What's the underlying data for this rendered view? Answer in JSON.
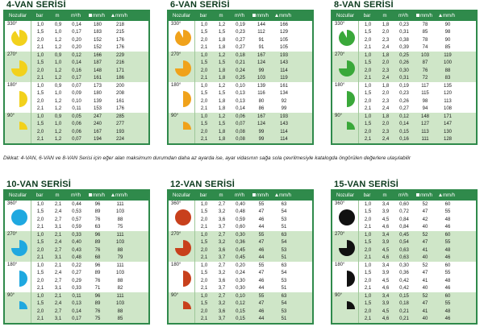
{
  "headers": {
    "nozzle": "Nozullar",
    "bar": "bar",
    "m": "m",
    "m3h": "m³/h",
    "mmh_sq": "mm/h",
    "mmh_tri": "mm/h"
  },
  "note": "Dikkat: 4-VAN, 6-VAN ve 8-VAN Serisi için eğer alan maksimum durumdan daha az ayarda ise, ayar vidasının sağa sola çevrilmesiyle katalogda öngörülen değerlere ulaşılabilir",
  "panels": [
    {
      "title": "4-VAN SERİSİ",
      "color": "#f2d11c",
      "groups": [
        {
          "deg": "330°",
          "rows": [
            [
              "1,0",
              "0,9",
              "0,14",
              "180",
              "218"
            ],
            [
              "1,5",
              "1,0",
              "0,17",
              "183",
              "215"
            ],
            [
              "2,0",
              "1,2",
              "0,20",
              "152",
              "176"
            ],
            [
              "2,1",
              "1,2",
              "0,20",
              "152",
              "176"
            ]
          ]
        },
        {
          "deg": "270°",
          "rows": [
            [
              "1,0",
              "0,9",
              "0,12",
              "166",
              "229"
            ],
            [
              "1,5",
              "1,0",
              "0,14",
              "187",
              "216"
            ],
            [
              "2,0",
              "1,2",
              "0,16",
              "148",
              "171"
            ],
            [
              "2,1",
              "1,2",
              "0,17",
              "161",
              "186"
            ]
          ]
        },
        {
          "deg": "180°",
          "rows": [
            [
              "1,0",
              "0,9",
              "0,07",
              "173",
              "200"
            ],
            [
              "1,5",
              "1,0",
              "0,09",
              "180",
              "208"
            ],
            [
              "2,0",
              "1,2",
              "0,10",
              "139",
              "161"
            ],
            [
              "2,1",
              "1,2",
              "0,11",
              "153",
              "176"
            ]
          ]
        },
        {
          "deg": "90°",
          "rows": [
            [
              "1,0",
              "0,9",
              "0,05",
              "247",
              "285"
            ],
            [
              "1,5",
              "1,0",
              "0,06",
              "240",
              "277"
            ],
            [
              "2,0",
              "1,2",
              "0,06",
              "167",
              "193"
            ],
            [
              "2,1",
              "1,2",
              "0,07",
              "194",
              "224"
            ]
          ]
        }
      ]
    },
    {
      "title": "6-VAN SERİSİ",
      "color": "#f0a21b",
      "groups": [
        {
          "deg": "330°",
          "rows": [
            [
              "1,0",
              "1,2",
              "0,19",
              "144",
              "166"
            ],
            [
              "1,5",
              "1,5",
              "0,23",
              "112",
              "129"
            ],
            [
              "2,0",
              "1,8",
              "0,27",
              "91",
              "105"
            ],
            [
              "2,1",
              "1,8",
              "0,27",
              "91",
              "105"
            ]
          ]
        },
        {
          "deg": "270°",
          "rows": [
            [
              "1,0",
              "1,2",
              "0,18",
              "167",
              "193"
            ],
            [
              "1,5",
              "1,5",
              "0,21",
              "124",
              "143"
            ],
            [
              "2,0",
              "1,8",
              "0,24",
              "99",
              "114"
            ],
            [
              "2,1",
              "1,8",
              "0,25",
              "103",
              "119"
            ]
          ]
        },
        {
          "deg": "180°",
          "rows": [
            [
              "1,0",
              "1,2",
              "0,10",
              "139",
              "161"
            ],
            [
              "1,5",
              "1,5",
              "0,13",
              "116",
              "134"
            ],
            [
              "2,0",
              "1,8",
              "0,13",
              "80",
              "92"
            ],
            [
              "2,1",
              "1,8",
              "0,14",
              "86",
              "99"
            ]
          ]
        },
        {
          "deg": "90°",
          "rows": [
            [
              "1,0",
              "1,2",
              "0,06",
              "167",
              "193"
            ],
            [
              "1,5",
              "1,5",
              "0,07",
              "124",
              "143"
            ],
            [
              "2,0",
              "1,8",
              "0,08",
              "99",
              "114"
            ],
            [
              "2,1",
              "1,8",
              "0,08",
              "99",
              "114"
            ]
          ]
        }
      ]
    },
    {
      "title": "8-VAN SERİSİ",
      "color": "#3aa83a",
      "groups": [
        {
          "deg": "330°",
          "rows": [
            [
              "1,0",
              "1,8",
              "0,23",
              "78",
              "90"
            ],
            [
              "1,5",
              "2,0",
              "0,31",
              "85",
              "98"
            ],
            [
              "2,0",
              "2,3",
              "0,38",
              "78",
              "90"
            ],
            [
              "2,1",
              "2,4",
              "0,39",
              "74",
              "85"
            ]
          ]
        },
        {
          "deg": "270°",
          "rows": [
            [
              "1,0",
              "1,8",
              "0,25",
              "103",
              "119"
            ],
            [
              "1,5",
              "2,0",
              "0,26",
              "87",
              "100"
            ],
            [
              "2,0",
              "2,3",
              "0,30",
              "76",
              "88"
            ],
            [
              "2,1",
              "2,4",
              "0,31",
              "72",
              "83"
            ]
          ]
        },
        {
          "deg": "180°",
          "rows": [
            [
              "1,0",
              "1,8",
              "0,19",
              "117",
              "135"
            ],
            [
              "1,5",
              "2,0",
              "0,23",
              "115",
              "120"
            ],
            [
              "2,0",
              "2,3",
              "0,26",
              "98",
              "113"
            ],
            [
              "2,1",
              "2,4",
              "0,27",
              "94",
              "108"
            ]
          ]
        },
        {
          "deg": "90°",
          "rows": [
            [
              "1,0",
              "1,8",
              "0,12",
              "148",
              "171"
            ],
            [
              "1,5",
              "2,0",
              "0,14",
              "127",
              "147"
            ],
            [
              "2,0",
              "2,3",
              "0,15",
              "113",
              "130"
            ],
            [
              "2,1",
              "2,4",
              "0,16",
              "111",
              "128"
            ]
          ]
        }
      ]
    },
    {
      "title": "10-VAN SERİSİ",
      "color": "#1fa8e0",
      "groups": [
        {
          "deg": "360°",
          "rows": [
            [
              "1,0",
              "2,1",
              "0,44",
              "96",
              "111"
            ],
            [
              "1,5",
              "2,4",
              "0,53",
              "89",
              "103"
            ],
            [
              "2,0",
              "2,7",
              "0,57",
              "76",
              "88"
            ],
            [
              "2,1",
              "3,1",
              "0,59",
              "63",
              "75"
            ]
          ]
        },
        {
          "deg": "270°",
          "rows": [
            [
              "1,0",
              "2,1",
              "0,33",
              "96",
              "111"
            ],
            [
              "1,5",
              "2,4",
              "0,40",
              "89",
              "103"
            ],
            [
              "2,0",
              "2,7",
              "0,43",
              "76",
              "88"
            ],
            [
              "2,1",
              "3,1",
              "0,48",
              "68",
              "79"
            ]
          ]
        },
        {
          "deg": "180°",
          "rows": [
            [
              "1,0",
              "2,1",
              "0,22",
              "96",
              "111"
            ],
            [
              "1,5",
              "2,4",
              "0,27",
              "89",
              "103"
            ],
            [
              "2,0",
              "2,7",
              "0,29",
              "76",
              "88"
            ],
            [
              "2,1",
              "3,1",
              "0,33",
              "71",
              "82"
            ]
          ]
        },
        {
          "deg": "90°",
          "rows": [
            [
              "1,0",
              "2,1",
              "0,11",
              "96",
              "111"
            ],
            [
              "1,5",
              "2,4",
              "0,13",
              "89",
              "103"
            ],
            [
              "2,0",
              "2,7",
              "0,14",
              "76",
              "88"
            ],
            [
              "2,1",
              "3,1",
              "0,17",
              "75",
              "85"
            ]
          ]
        }
      ]
    },
    {
      "title": "12-VAN SERİSİ",
      "color": "#c8401c",
      "groups": [
        {
          "deg": "360°",
          "rows": [
            [
              "1,0",
              "2,7",
              "0,40",
              "55",
              "63"
            ],
            [
              "1,5",
              "3,2",
              "0,48",
              "47",
              "54"
            ],
            [
              "2,0",
              "3,6",
              "0,59",
              "46",
              "53"
            ],
            [
              "2,1",
              "3,7",
              "0,60",
              "44",
              "51"
            ]
          ]
        },
        {
          "deg": "270°",
          "rows": [
            [
              "1,0",
              "2,7",
              "0,30",
              "55",
              "63"
            ],
            [
              "1,5",
              "3,2",
              "0,36",
              "47",
              "54"
            ],
            [
              "2,0",
              "3,6",
              "0,45",
              "46",
              "53"
            ],
            [
              "2,1",
              "3,7",
              "0,45",
              "44",
              "51"
            ]
          ]
        },
        {
          "deg": "180°",
          "rows": [
            [
              "1,0",
              "2,7",
              "0,20",
              "55",
              "63"
            ],
            [
              "1,5",
              "3,2",
              "0,24",
              "47",
              "54"
            ],
            [
              "2,0",
              "3,6",
              "0,30",
              "46",
              "53"
            ],
            [
              "2,1",
              "3,7",
              "0,30",
              "44",
              "51"
            ]
          ]
        },
        {
          "deg": "90°",
          "rows": [
            [
              "1,0",
              "2,7",
              "0,10",
              "55",
              "63"
            ],
            [
              "1,5",
              "3,2",
              "0,12",
              "47",
              "54"
            ],
            [
              "2,0",
              "3,6",
              "0,15",
              "46",
              "53"
            ],
            [
              "2,1",
              "3,7",
              "0,15",
              "44",
              "51"
            ]
          ]
        }
      ]
    },
    {
      "title": "15-VAN SERİSİ",
      "color": "#111111",
      "groups": [
        {
          "deg": "360°",
          "rows": [
            [
              "1,0",
              "3,4",
              "0,60",
              "52",
              "60"
            ],
            [
              "1,5",
              "3,9",
              "0,72",
              "47",
              "55"
            ],
            [
              "2,0",
              "4,5",
              "0,84",
              "42",
              "48"
            ],
            [
              "2,1",
              "4,6",
              "0,84",
              "40",
              "46"
            ]
          ]
        },
        {
          "deg": "270°",
          "rows": [
            [
              "1,0",
              "3,4",
              "0,45",
              "52",
              "60"
            ],
            [
              "1,5",
              "3,9",
              "0,54",
              "47",
              "55"
            ],
            [
              "2,0",
              "4,5",
              "0,63",
              "41",
              "48"
            ],
            [
              "2,1",
              "4,6",
              "0,63",
              "40",
              "46"
            ]
          ]
        },
        {
          "deg": "180°",
          "rows": [
            [
              "1,0",
              "3,4",
              "0,30",
              "52",
              "60"
            ],
            [
              "1,5",
              "3,9",
              "0,36",
              "47",
              "55"
            ],
            [
              "2,0",
              "4,5",
              "0,42",
              "41",
              "48"
            ],
            [
              "2,1",
              "4,6",
              "0,42",
              "40",
              "46"
            ]
          ]
        },
        {
          "deg": "90°",
          "rows": [
            [
              "1,0",
              "3,4",
              "0,15",
              "52",
              "60"
            ],
            [
              "1,5",
              "3,9",
              "0,18",
              "47",
              "55"
            ],
            [
              "2,0",
              "4,5",
              "0,21",
              "41",
              "48"
            ],
            [
              "2,1",
              "4,6",
              "0,21",
              "40",
              "46"
            ]
          ]
        }
      ]
    }
  ]
}
